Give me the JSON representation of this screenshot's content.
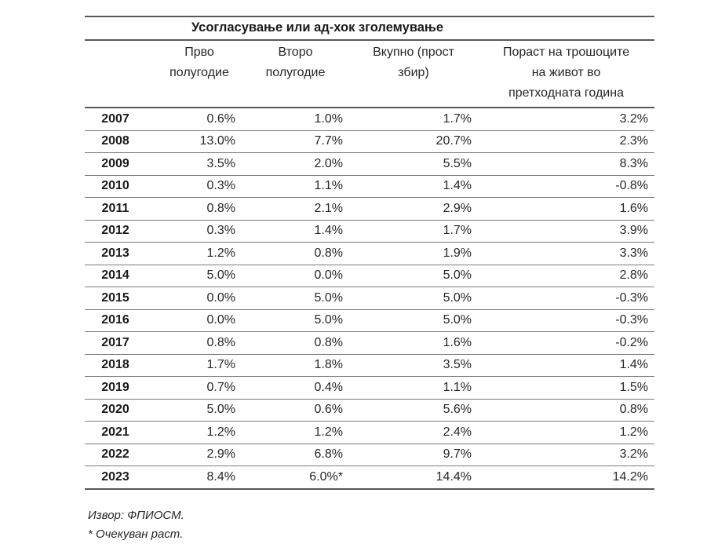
{
  "table": {
    "title": "Усогласување или ад-хок зголемување",
    "headers": [
      {
        "lines": [
          "Прво",
          "полугодие"
        ]
      },
      {
        "lines": [
          "Второ",
          "полугодие"
        ]
      },
      {
        "lines": [
          "Вкупно (прост",
          "збир)"
        ]
      },
      {
        "lines": [
          "Пораст на трошоците",
          "на живот во",
          "претходната година"
        ]
      }
    ],
    "rows": [
      {
        "year": "2007",
        "h1": "0.6%",
        "h2": "1.0%",
        "total": "1.7%",
        "cpi": "3.2%"
      },
      {
        "year": "2008",
        "h1": "13.0%",
        "h2": "7.7%",
        "total": "20.7%",
        "cpi": "2.3%"
      },
      {
        "year": "2009",
        "h1": "3.5%",
        "h2": "2.0%",
        "total": "5.5%",
        "cpi": "8.3%"
      },
      {
        "year": "2010",
        "h1": "0.3%",
        "h2": "1.1%",
        "total": "1.4%",
        "cpi": "-0.8%"
      },
      {
        "year": "2011",
        "h1": "0.8%",
        "h2": "2.1%",
        "total": "2.9%",
        "cpi": "1.6%"
      },
      {
        "year": "2012",
        "h1": "0.3%",
        "h2": "1.4%",
        "total": "1.7%",
        "cpi": "3.9%"
      },
      {
        "year": "2013",
        "h1": "1.2%",
        "h2": "0.8%",
        "total": "1.9%",
        "cpi": "3.3%"
      },
      {
        "year": "2014",
        "h1": "5.0%",
        "h2": "0.0%",
        "total": "5.0%",
        "cpi": "2.8%"
      },
      {
        "year": "2015",
        "h1": "0.0%",
        "h2": "5.0%",
        "total": "5.0%",
        "cpi": "-0.3%"
      },
      {
        "year": "2016",
        "h1": "0.0%",
        "h2": "5.0%",
        "total": "5.0%",
        "cpi": "-0.3%"
      },
      {
        "year": "2017",
        "h1": "0.8%",
        "h2": "0.8%",
        "total": "1.6%",
        "cpi": "-0.2%"
      },
      {
        "year": "2018",
        "h1": "1.7%",
        "h2": "1.8%",
        "total": "3.5%",
        "cpi": "1.4%"
      },
      {
        "year": "2019",
        "h1": "0.7%",
        "h2": "0.4%",
        "total": "1.1%",
        "cpi": "1.5%"
      },
      {
        "year": "2020",
        "h1": "5.0%",
        "h2": "0.6%",
        "total": "5.6%",
        "cpi": "0.8%"
      },
      {
        "year": "2021",
        "h1": "1.2%",
        "h2": "1.2%",
        "total": "2.4%",
        "cpi": "1.2%"
      },
      {
        "year": "2022",
        "h1": "2.9%",
        "h2": "6.8%",
        "total": "9.7%",
        "cpi": "3.2%"
      },
      {
        "year": "2023",
        "h1": "8.4%",
        "h2": "6.0%*",
        "total": "14.4%",
        "cpi": "14.2%"
      }
    ]
  },
  "footnotes": {
    "source": "Извор: ФПИОСМ.",
    "expected": "* Очекуван раст."
  }
}
